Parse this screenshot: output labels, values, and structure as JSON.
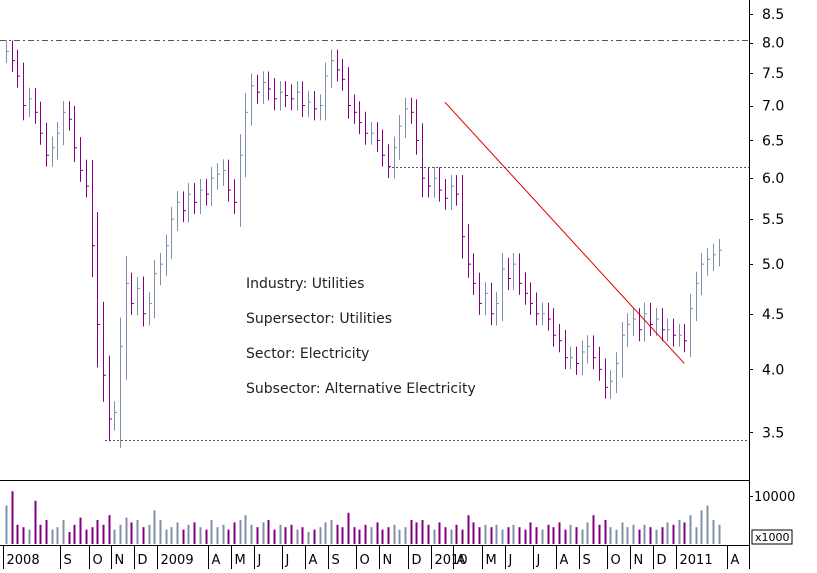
{
  "chart_data": {
    "type": "ohlc",
    "scale": "log",
    "ylim": [
      3.3,
      8.5
    ],
    "y_ticks": [
      "3.5",
      "4.0",
      "4.5",
      "5.0",
      "5.5",
      "6.0",
      "6.5",
      "7.0",
      "7.5",
      "8.0",
      "8.5"
    ],
    "x_labels": [
      "2008",
      "S",
      "O",
      "N",
      "D",
      "2009",
      "A",
      "M",
      "J",
      "J",
      "A",
      "S",
      "O",
      "N",
      "D",
      "2010",
      "A",
      "M",
      "J",
      "J",
      "A",
      "S",
      "O",
      "N",
      "D",
      "2011",
      "A"
    ],
    "x_label_weeks": [
      0,
      10,
      15,
      19,
      23,
      27,
      36,
      40,
      44,
      49,
      53,
      57,
      62,
      66,
      71,
      75,
      79,
      84,
      88,
      93,
      97,
      101,
      106,
      110,
      114,
      118,
      127
    ],
    "closes": [
      7.85,
      7.7,
      7.45,
      7.0,
      7.1,
      6.9,
      6.6,
      6.3,
      6.4,
      6.6,
      6.9,
      6.8,
      6.4,
      6.1,
      5.9,
      5.2,
      4.4,
      3.95,
      3.6,
      3.65,
      4.2,
      4.8,
      4.6,
      4.75,
      4.5,
      4.6,
      4.9,
      5.0,
      5.2,
      5.5,
      5.7,
      5.6,
      5.8,
      5.7,
      5.85,
      5.8,
      6.0,
      6.05,
      6.1,
      5.85,
      5.7,
      6.3,
      6.9,
      7.3,
      7.2,
      7.35,
      7.25,
      7.1,
      7.2,
      7.15,
      7.1,
      7.2,
      7.0,
      7.05,
      6.95,
      7.0,
      7.45,
      7.7,
      7.55,
      7.4,
      7.0,
      6.9,
      6.75,
      6.6,
      6.6,
      6.5,
      6.3,
      6.15,
      6.4,
      6.7,
      6.95,
      6.9,
      6.5,
      6.0,
      5.9,
      6.0,
      5.85,
      5.75,
      5.9,
      5.8,
      5.3,
      5.0,
      4.8,
      4.6,
      4.7,
      4.5,
      4.6,
      4.95,
      4.85,
      5.0,
      4.8,
      4.7,
      4.6,
      4.5,
      4.5,
      4.45,
      4.3,
      4.25,
      4.1,
      4.1,
      4.05,
      4.15,
      4.2,
      4.1,
      4.0,
      3.85,
      3.9,
      4.05,
      4.3,
      4.4,
      4.45,
      4.35,
      4.5,
      4.4,
      4.45,
      4.35,
      4.35,
      4.3,
      4.3,
      4.25,
      4.55,
      4.8,
      5.0,
      5.05,
      5.1,
      5.15
    ],
    "volume": [
      8000,
      11000,
      4000,
      3500,
      3000,
      9000,
      4000,
      5000,
      3000,
      3500,
      5000,
      2500,
      4000,
      5500,
      3000,
      3500,
      5000,
      4000,
      6000,
      3000,
      4000,
      5500,
      4500,
      5000,
      3500,
      4000,
      7000,
      5000,
      3000,
      3500,
      4500,
      3000,
      4000,
      4500,
      3500,
      3000,
      5000,
      3500,
      4000,
      3000,
      4500,
      5000,
      6000,
      4000,
      3500,
      4500,
      5000,
      3000,
      4000,
      3500,
      4000,
      3000,
      3500,
      2500,
      3000,
      3500,
      4500,
      5000,
      4000,
      3500,
      6500,
      3500,
      3000,
      4000,
      3500,
      4500,
      3000,
      3500,
      4000,
      3000,
      3500,
      5000,
      4500,
      5000,
      4000,
      3000,
      4500,
      3500,
      3000,
      4000,
      3000,
      6000,
      4500,
      3500,
      4000,
      3500,
      4000,
      3000,
      3500,
      4000,
      3500,
      3000,
      4500,
      3500,
      3000,
      4000,
      3500,
      4500,
      3000,
      4000,
      3500,
      3000,
      4500,
      6000,
      4000,
      5000,
      3500,
      3000,
      4500,
      3500,
      4000,
      3000,
      4000,
      3500,
      3000,
      3500,
      4500,
      4000,
      5000,
      4500,
      6000,
      3500,
      7000,
      8000,
      5000,
      4000
    ],
    "volume_tick": "10000",
    "volume_unit": "x1000",
    "reference_lines": [
      {
        "style": "dash-dot",
        "y": 8.05
      },
      {
        "style": "dotted",
        "y": 6.15
      },
      {
        "style": "dotted",
        "y": 3.44
      }
    ],
    "trendline": {
      "color": "#e00000",
      "from": {
        "week": 77,
        "y": 7.05
      },
      "to": {
        "week": 119,
        "y": 4.05
      }
    },
    "annotations": [
      "Industry: Utilities",
      "Supersector: Utilities",
      "Sector: Electricity",
      "Subsector: Alternative Electricity"
    ],
    "colors": {
      "up_bar": "#8090a8",
      "down_bar": "#800080",
      "trendline": "#e00000",
      "axis": "#000000"
    }
  }
}
